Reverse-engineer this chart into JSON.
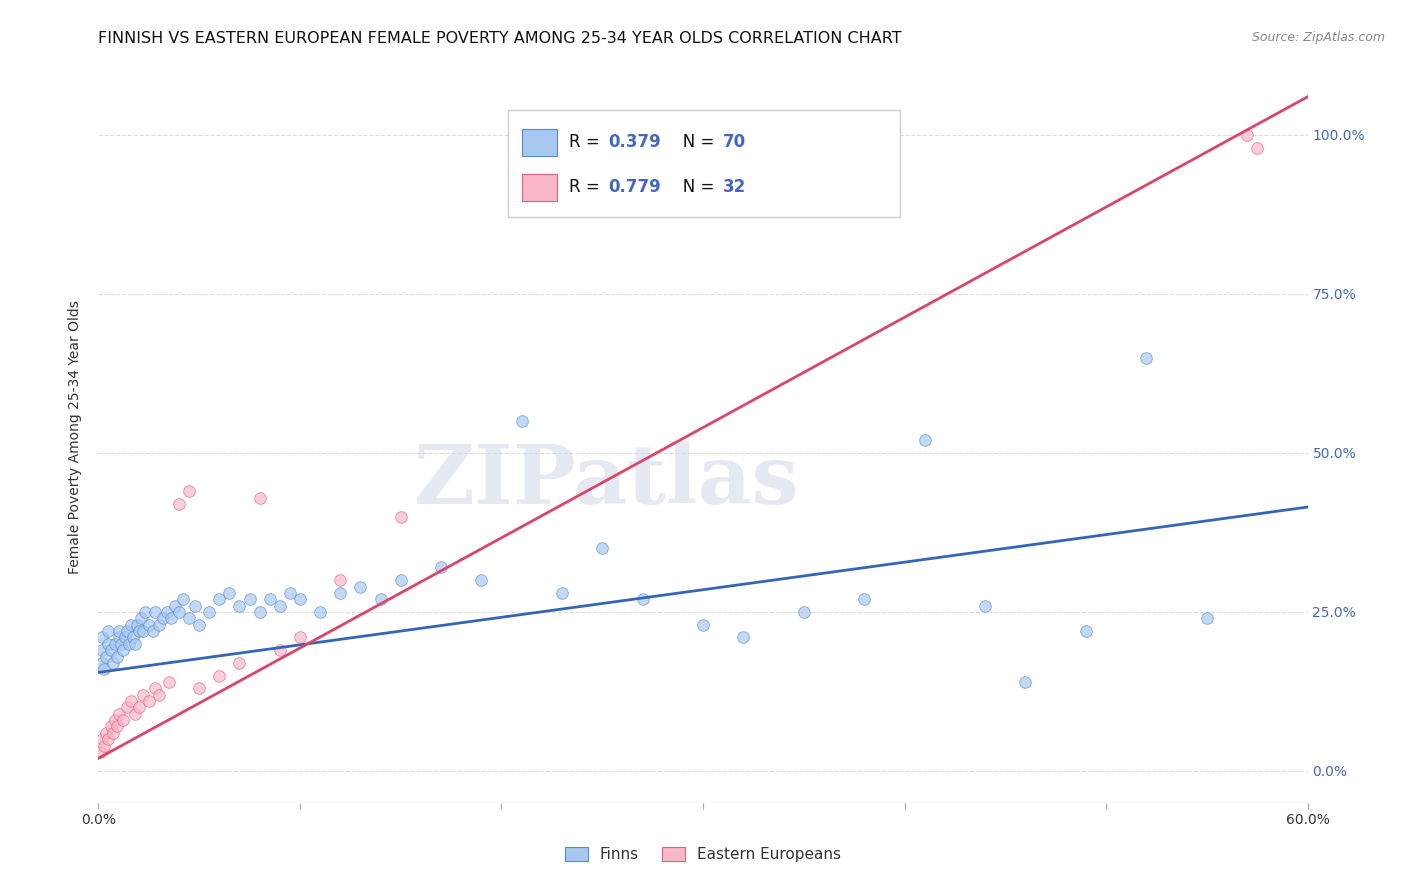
{
  "title": "FINNISH VS EASTERN EUROPEAN FEMALE POVERTY AMONG 25-34 YEAR OLDS CORRELATION CHART",
  "source": "Source: ZipAtlas.com",
  "ylabel": "Female Poverty Among 25-34 Year Olds",
  "ytick_labels": [
    "0.0%",
    "25.0%",
    "50.0%",
    "75.0%",
    "100.0%"
  ],
  "ytick_vals": [
    0.0,
    0.25,
    0.5,
    0.75,
    1.0
  ],
  "xlim": [
    0.0,
    0.6
  ],
  "ylim": [
    -0.05,
    1.1
  ],
  "finns_color": "#a8c8f0",
  "eastern_color": "#f8b8c8",
  "finns_edge_color": "#5588cc",
  "eastern_edge_color": "#e06080",
  "finns_line_color": "#3366bb",
  "eastern_line_color": "#dd4466",
  "watermark": "ZIPatlas",
  "finns_x": [
    0.002,
    0.002,
    0.002,
    0.003,
    0.004,
    0.005,
    0.005,
    0.006,
    0.007,
    0.008,
    0.009,
    0.01,
    0.01,
    0.011,
    0.012,
    0.013,
    0.014,
    0.015,
    0.016,
    0.017,
    0.018,
    0.019,
    0.02,
    0.021,
    0.022,
    0.023,
    0.025,
    0.027,
    0.028,
    0.03,
    0.032,
    0.034,
    0.036,
    0.038,
    0.04,
    0.042,
    0.045,
    0.048,
    0.05,
    0.055,
    0.06,
    0.065,
    0.07,
    0.075,
    0.08,
    0.085,
    0.09,
    0.095,
    0.1,
    0.11,
    0.12,
    0.13,
    0.14,
    0.15,
    0.17,
    0.19,
    0.21,
    0.23,
    0.25,
    0.27,
    0.3,
    0.32,
    0.35,
    0.38,
    0.41,
    0.44,
    0.46,
    0.49,
    0.52,
    0.55
  ],
  "finns_y": [
    0.17,
    0.19,
    0.21,
    0.16,
    0.18,
    0.2,
    0.22,
    0.19,
    0.17,
    0.2,
    0.18,
    0.21,
    0.22,
    0.2,
    0.19,
    0.21,
    0.22,
    0.2,
    0.23,
    0.21,
    0.2,
    0.23,
    0.22,
    0.24,
    0.22,
    0.25,
    0.23,
    0.22,
    0.25,
    0.23,
    0.24,
    0.25,
    0.24,
    0.26,
    0.25,
    0.27,
    0.24,
    0.26,
    0.23,
    0.25,
    0.27,
    0.28,
    0.26,
    0.27,
    0.25,
    0.27,
    0.26,
    0.28,
    0.27,
    0.25,
    0.28,
    0.29,
    0.27,
    0.3,
    0.32,
    0.3,
    0.55,
    0.28,
    0.35,
    0.27,
    0.23,
    0.21,
    0.25,
    0.27,
    0.52,
    0.26,
    0.14,
    0.22,
    0.65,
    0.24
  ],
  "eastern_x": [
    0.001,
    0.002,
    0.003,
    0.004,
    0.005,
    0.006,
    0.007,
    0.008,
    0.009,
    0.01,
    0.012,
    0.014,
    0.016,
    0.018,
    0.02,
    0.022,
    0.025,
    0.028,
    0.03,
    0.035,
    0.04,
    0.045,
    0.05,
    0.06,
    0.07,
    0.08,
    0.09,
    0.1,
    0.12,
    0.15,
    0.57,
    0.575
  ],
  "eastern_y": [
    0.03,
    0.05,
    0.04,
    0.06,
    0.05,
    0.07,
    0.06,
    0.08,
    0.07,
    0.09,
    0.08,
    0.1,
    0.11,
    0.09,
    0.1,
    0.12,
    0.11,
    0.13,
    0.12,
    0.14,
    0.42,
    0.44,
    0.13,
    0.15,
    0.17,
    0.43,
    0.19,
    0.21,
    0.3,
    0.4,
    1.0,
    0.98
  ],
  "finns_trend_x": [
    0.0,
    0.6
  ],
  "finns_trend_y": [
    0.155,
    0.415
  ],
  "eastern_trend_x": [
    0.0,
    0.6
  ],
  "eastern_trend_y": [
    0.02,
    1.06
  ],
  "background_color": "#ffffff",
  "grid_color": "#dddddd",
  "title_fontsize": 11.5,
  "source_fontsize": 9,
  "axis_label_fontsize": 10,
  "tick_fontsize": 10,
  "right_tick_color": "#4466cc",
  "dot_size": 70,
  "dot_alpha": 0.7,
  "dot_linewidth": 0.6
}
